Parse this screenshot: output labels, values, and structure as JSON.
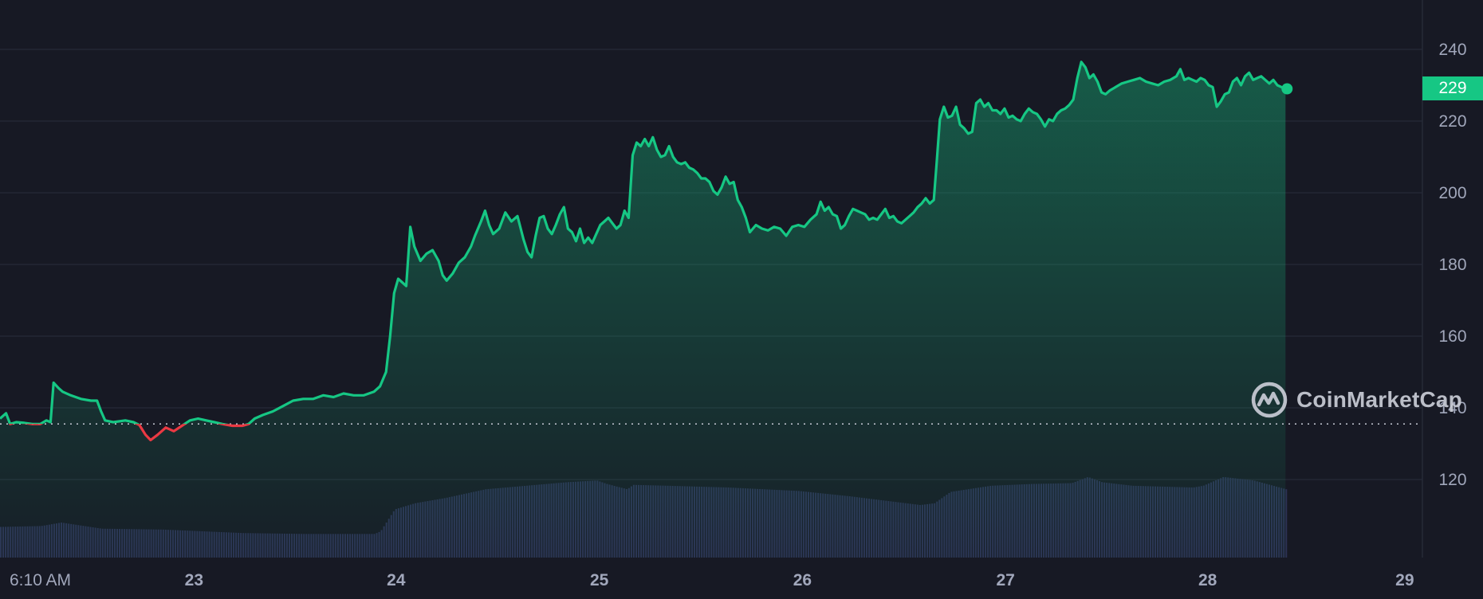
{
  "chart_data": {
    "type": "area",
    "x_tick_labels": [
      "6:10 AM",
      "23",
      "24",
      "25",
      "26",
      "27",
      "28",
      "29"
    ],
    "y_tick_labels": [
      "240",
      "220",
      "200",
      "180",
      "160",
      "140",
      "120"
    ],
    "ylim": [
      98,
      252
    ],
    "grid": true,
    "baseline_value": 135.5,
    "current_price_label": "229",
    "colors": {
      "up_line": "#16c784",
      "down_line": "#ea3943",
      "volume_bar": "#2c3153",
      "grid": "#262a37",
      "badge": "#16c784"
    },
    "x_unit": "days (6:10 AM = 0)",
    "series": [
      {
        "points": [
          [
            0.0,
            137.0
          ],
          [
            0.03,
            138.5
          ],
          [
            0.05,
            135.5
          ],
          [
            0.08,
            136.0
          ],
          [
            0.12,
            135.8
          ],
          [
            0.16,
            135.5
          ],
          [
            0.2,
            135.5
          ],
          [
            0.23,
            136.5
          ],
          [
            0.25,
            136.0
          ],
          [
            0.265,
            147.0
          ],
          [
            0.29,
            145.5
          ],
          [
            0.31,
            144.5
          ],
          [
            0.35,
            143.5
          ],
          [
            0.4,
            142.5
          ],
          [
            0.45,
            142.0
          ],
          [
            0.48,
            142.0
          ],
          [
            0.5,
            139.0
          ],
          [
            0.52,
            136.5
          ],
          [
            0.56,
            136.0
          ],
          [
            0.62,
            136.5
          ],
          [
            0.66,
            136.0
          ],
          [
            0.69,
            135.2
          ],
          [
            0.72,
            132.5
          ],
          [
            0.745,
            131.0
          ],
          [
            0.78,
            132.5
          ],
          [
            0.82,
            134.5
          ],
          [
            0.86,
            133.5
          ],
          [
            0.9,
            135.0
          ],
          [
            0.94,
            136.5
          ],
          [
            0.98,
            137.0
          ],
          [
            1.02,
            136.5
          ],
          [
            1.06,
            136.0
          ],
          [
            1.1,
            135.5
          ],
          [
            1.15,
            135.0
          ],
          [
            1.2,
            135.0
          ],
          [
            1.23,
            135.5
          ],
          [
            1.26,
            137.0
          ],
          [
            1.3,
            138.0
          ],
          [
            1.35,
            139.0
          ],
          [
            1.4,
            140.5
          ],
          [
            1.45,
            142.0
          ],
          [
            1.5,
            142.5
          ],
          [
            1.55,
            142.5
          ],
          [
            1.6,
            143.5
          ],
          [
            1.65,
            143.0
          ],
          [
            1.7,
            144.0
          ],
          [
            1.75,
            143.5
          ],
          [
            1.8,
            143.5
          ],
          [
            1.85,
            144.5
          ],
          [
            1.88,
            146.0
          ],
          [
            1.91,
            150.0
          ],
          [
            1.93,
            160.0
          ],
          [
            1.95,
            172.0
          ],
          [
            1.97,
            176.0
          ],
          [
            1.99,
            175.0
          ],
          [
            2.01,
            174.0
          ],
          [
            2.03,
            190.5
          ],
          [
            2.05,
            185.0
          ],
          [
            2.08,
            181.0
          ],
          [
            2.11,
            183.0
          ],
          [
            2.14,
            184.0
          ],
          [
            2.17,
            181.0
          ],
          [
            2.19,
            177.0
          ],
          [
            2.21,
            175.5
          ],
          [
            2.24,
            177.5
          ],
          [
            2.27,
            180.5
          ],
          [
            2.3,
            182.0
          ],
          [
            2.33,
            185.0
          ],
          [
            2.35,
            188.0
          ],
          [
            2.38,
            192.0
          ],
          [
            2.4,
            195.0
          ],
          [
            2.42,
            191.0
          ],
          [
            2.44,
            188.5
          ],
          [
            2.47,
            190.0
          ],
          [
            2.5,
            194.5
          ],
          [
            2.53,
            192.0
          ],
          [
            2.56,
            193.5
          ],
          [
            2.59,
            187.0
          ],
          [
            2.61,
            183.5
          ],
          [
            2.63,
            182.0
          ],
          [
            2.65,
            188.0
          ],
          [
            2.67,
            193.0
          ],
          [
            2.69,
            193.5
          ],
          [
            2.71,
            190.0
          ],
          [
            2.73,
            188.5
          ],
          [
            2.75,
            191.0
          ],
          [
            2.77,
            194.0
          ],
          [
            2.79,
            196.0
          ],
          [
            2.81,
            190.0
          ],
          [
            2.83,
            189.0
          ],
          [
            2.85,
            186.5
          ],
          [
            2.87,
            190.0
          ],
          [
            2.89,
            186.0
          ],
          [
            2.91,
            187.5
          ],
          [
            2.93,
            186.0
          ],
          [
            2.95,
            188.5
          ],
          [
            2.97,
            191.0
          ],
          [
            2.99,
            192.0
          ],
          [
            3.01,
            193.0
          ],
          [
            3.03,
            191.5
          ],
          [
            3.05,
            190.0
          ],
          [
            3.07,
            191.0
          ],
          [
            3.09,
            195.0
          ],
          [
            3.11,
            193.0
          ],
          [
            3.13,
            210.5
          ],
          [
            3.15,
            214.0
          ],
          [
            3.17,
            213.0
          ],
          [
            3.19,
            215.0
          ],
          [
            3.21,
            213.0
          ],
          [
            3.23,
            215.5
          ],
          [
            3.25,
            212.0
          ],
          [
            3.27,
            210.0
          ],
          [
            3.29,
            210.5
          ],
          [
            3.31,
            213.0
          ],
          [
            3.33,
            210.0
          ],
          [
            3.35,
            208.5
          ],
          [
            3.37,
            208.0
          ],
          [
            3.39,
            208.5
          ],
          [
            3.41,
            207.0
          ],
          [
            3.43,
            206.5
          ],
          [
            3.45,
            205.5
          ],
          [
            3.47,
            204.0
          ],
          [
            3.49,
            204.0
          ],
          [
            3.51,
            203.0
          ],
          [
            3.53,
            200.5
          ],
          [
            3.55,
            199.5
          ],
          [
            3.57,
            201.5
          ],
          [
            3.59,
            204.5
          ],
          [
            3.61,
            202.5
          ],
          [
            3.63,
            203.0
          ],
          [
            3.65,
            198.0
          ],
          [
            3.67,
            196.0
          ],
          [
            3.69,
            193.0
          ],
          [
            3.71,
            189.0
          ],
          [
            3.74,
            191.0
          ],
          [
            3.77,
            190.0
          ],
          [
            3.8,
            189.5
          ],
          [
            3.83,
            190.5
          ],
          [
            3.86,
            190.0
          ],
          [
            3.89,
            188.0
          ],
          [
            3.92,
            190.5
          ],
          [
            3.95,
            191.0
          ],
          [
            3.98,
            190.5
          ],
          [
            4.01,
            192.5
          ],
          [
            4.04,
            194.0
          ],
          [
            4.06,
            197.5
          ],
          [
            4.08,
            195.0
          ],
          [
            4.1,
            196.0
          ],
          [
            4.12,
            194.0
          ],
          [
            4.14,
            193.5
          ],
          [
            4.16,
            190.0
          ],
          [
            4.18,
            191.0
          ],
          [
            4.2,
            193.5
          ],
          [
            4.22,
            195.5
          ],
          [
            4.24,
            195.0
          ],
          [
            4.26,
            194.5
          ],
          [
            4.28,
            194.0
          ],
          [
            4.3,
            192.5
          ],
          [
            4.32,
            193.0
          ],
          [
            4.34,
            192.5
          ],
          [
            4.36,
            194.0
          ],
          [
            4.38,
            195.5
          ],
          [
            4.4,
            193.0
          ],
          [
            4.42,
            193.5
          ],
          [
            4.44,
            192.0
          ],
          [
            4.46,
            191.5
          ],
          [
            4.48,
            192.5
          ],
          [
            4.5,
            193.5
          ],
          [
            4.52,
            194.5
          ],
          [
            4.54,
            196.0
          ],
          [
            4.56,
            197.0
          ],
          [
            4.58,
            198.5
          ],
          [
            4.6,
            197.0
          ],
          [
            4.62,
            198.0
          ],
          [
            4.635,
            209.0
          ],
          [
            4.65,
            220.5
          ],
          [
            4.67,
            224.0
          ],
          [
            4.69,
            221.0
          ],
          [
            4.71,
            221.5
          ],
          [
            4.73,
            224.0
          ],
          [
            4.75,
            219.0
          ],
          [
            4.77,
            218.0
          ],
          [
            4.79,
            216.5
          ],
          [
            4.81,
            217.0
          ],
          [
            4.83,
            225.0
          ],
          [
            4.85,
            226.0
          ],
          [
            4.87,
            224.0
          ],
          [
            4.89,
            225.0
          ],
          [
            4.91,
            223.0
          ],
          [
            4.93,
            223.0
          ],
          [
            4.95,
            222.0
          ],
          [
            4.97,
            223.5
          ],
          [
            4.99,
            221.0
          ],
          [
            5.01,
            221.5
          ],
          [
            5.03,
            220.5
          ],
          [
            5.05,
            220.0
          ],
          [
            5.07,
            222.0
          ],
          [
            5.09,
            223.5
          ],
          [
            5.11,
            222.5
          ],
          [
            5.13,
            222.0
          ],
          [
            5.15,
            220.5
          ],
          [
            5.17,
            218.5
          ],
          [
            5.19,
            220.5
          ],
          [
            5.21,
            220.0
          ],
          [
            5.23,
            222.0
          ],
          [
            5.25,
            223.0
          ],
          [
            5.27,
            223.5
          ],
          [
            5.29,
            224.5
          ],
          [
            5.31,
            226.0
          ],
          [
            5.33,
            232.0
          ],
          [
            5.35,
            236.5
          ],
          [
            5.37,
            235.0
          ],
          [
            5.39,
            232.0
          ],
          [
            5.41,
            233.0
          ],
          [
            5.43,
            231.0
          ],
          [
            5.45,
            228.0
          ],
          [
            5.47,
            227.5
          ],
          [
            5.49,
            228.5
          ],
          [
            5.52,
            229.5
          ],
          [
            5.55,
            230.5
          ],
          [
            5.58,
            231.0
          ],
          [
            5.61,
            231.5
          ],
          [
            5.64,
            232.0
          ],
          [
            5.67,
            231.0
          ],
          [
            5.7,
            230.5
          ],
          [
            5.73,
            230.0
          ],
          [
            5.76,
            231.0
          ],
          [
            5.79,
            231.5
          ],
          [
            5.82,
            232.5
          ],
          [
            5.84,
            234.5
          ],
          [
            5.86,
            231.5
          ],
          [
            5.88,
            232.0
          ],
          [
            5.9,
            231.5
          ],
          [
            5.92,
            231.0
          ],
          [
            5.94,
            232.0
          ],
          [
            5.96,
            231.5
          ],
          [
            5.98,
            230.0
          ],
          [
            6.0,
            229.5
          ],
          [
            6.02,
            224.0
          ],
          [
            6.04,
            225.5
          ],
          [
            6.06,
            227.5
          ],
          [
            6.08,
            228.0
          ],
          [
            6.1,
            231.0
          ],
          [
            6.12,
            232.0
          ],
          [
            6.14,
            230.0
          ],
          [
            6.16,
            232.5
          ],
          [
            6.18,
            233.5
          ],
          [
            6.2,
            231.5
          ],
          [
            6.22,
            232.0
          ],
          [
            6.24,
            232.5
          ],
          [
            6.26,
            231.5
          ],
          [
            6.28,
            230.5
          ],
          [
            6.3,
            231.5
          ],
          [
            6.32,
            230.0
          ],
          [
            6.34,
            229.5
          ],
          [
            6.36,
            229.0
          ]
        ]
      }
    ],
    "volume": {
      "x": [
        0.0,
        0.2,
        0.3,
        0.5,
        0.8,
        1.2,
        1.5,
        1.85,
        1.88,
        1.95,
        2.05,
        2.2,
        2.4,
        2.6,
        2.8,
        2.95,
        3.0,
        3.1,
        3.13,
        3.3,
        3.6,
        3.95,
        4.2,
        4.55,
        4.62,
        4.7,
        4.9,
        5.1,
        5.3,
        5.38,
        5.45,
        5.6,
        5.9,
        5.95,
        6.05,
        6.2,
        6.36
      ],
      "values": [
        0.35,
        0.36,
        0.4,
        0.33,
        0.32,
        0.28,
        0.27,
        0.27,
        0.3,
        0.55,
        0.62,
        0.68,
        0.78,
        0.82,
        0.86,
        0.88,
        0.84,
        0.78,
        0.83,
        0.82,
        0.8,
        0.76,
        0.7,
        0.6,
        0.62,
        0.75,
        0.82,
        0.84,
        0.85,
        0.92,
        0.86,
        0.82,
        0.8,
        0.82,
        0.92,
        0.88,
        0.78
      ]
    }
  },
  "watermark": {
    "text": "CoinMarketCap"
  }
}
